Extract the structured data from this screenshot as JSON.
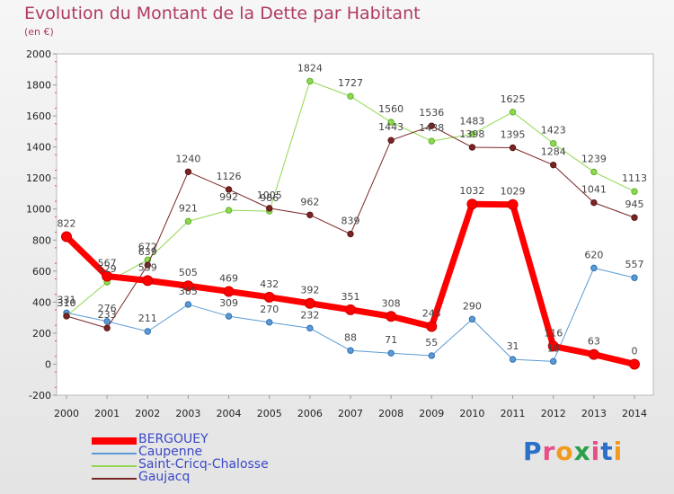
{
  "header": {
    "title": "Evolution du Montant de la Dette par Habitant",
    "subtitle": "(en €)"
  },
  "logo": {
    "text": "Proxiti",
    "letters": [
      "P",
      "r",
      "o",
      "x",
      "i",
      "t",
      "i"
    ],
    "colors": [
      "#2a6fc9",
      "#e84e8a",
      "#f29a1f",
      "#2aa04a",
      "#e84e8a",
      "#2a6fc9",
      "#f29a1f"
    ]
  },
  "chart_data": {
    "type": "line",
    "title": "Evolution du Montant de la Dette par Habitant",
    "subtitle": "(en €)",
    "xlabel": "",
    "ylabel": "",
    "x": [
      "2000",
      "2001",
      "2002",
      "2003",
      "2004",
      "2005",
      "2006",
      "2007",
      "2008",
      "2009",
      "2010",
      "2011",
      "2012",
      "2013",
      "2014"
    ],
    "ylim": [
      -200,
      2000
    ],
    "yticks": [
      -200,
      0,
      200,
      400,
      600,
      800,
      1000,
      1200,
      1400,
      1600,
      1800,
      2000
    ],
    "grid": false,
    "legend": "bottom-left",
    "series": [
      {
        "name": "BERGOUEY",
        "color": "#ff0000",
        "width": 7,
        "values": [
          822,
          567,
          539,
          505,
          469,
          432,
          392,
          351,
          308,
          243,
          1032,
          1029,
          116,
          63,
          0
        ]
      },
      {
        "name": "Caupenne",
        "color": "#5b9bd5",
        "width": 1,
        "values": [
          331,
          276,
          211,
          385,
          309,
          270,
          232,
          88,
          71,
          55,
          290,
          31,
          18,
          620,
          557
        ]
      },
      {
        "name": "Saint-Cricq-Chalosse",
        "color": "#8fd84f",
        "width": 1,
        "values": [
          310,
          529,
          672,
          921,
          992,
          986,
          1824,
          1727,
          1560,
          1438,
          1483,
          1625,
          1423,
          1239,
          1113
        ]
      },
      {
        "name": "Gaujacq",
        "color": "#7a2525",
        "width": 1,
        "values": [
          310,
          233,
          639,
          1240,
          1126,
          1005,
          962,
          839,
          1443,
          1536,
          1398,
          1395,
          1284,
          1041,
          945
        ]
      }
    ]
  }
}
